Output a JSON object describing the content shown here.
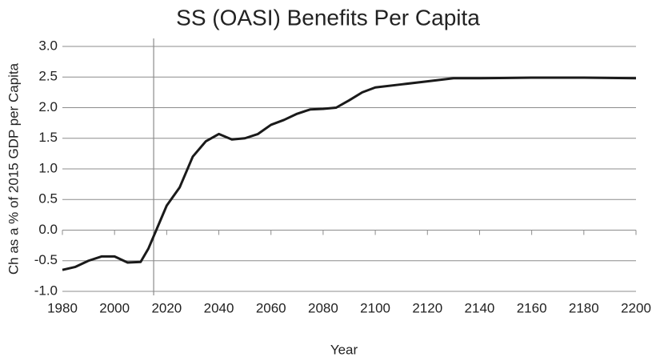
{
  "chart_data": {
    "type": "line",
    "title": "SS (OASI) Benefits Per Capita",
    "xlabel": "Year",
    "ylabel": "Ch as a % of 2015 GDP per Capita",
    "x": [
      1980,
      1985,
      1990,
      1995,
      2000,
      2005,
      2010,
      2013,
      2016,
      2020,
      2025,
      2030,
      2035,
      2040,
      2045,
      2050,
      2055,
      2060,
      2065,
      2070,
      2075,
      2080,
      2085,
      2090,
      2095,
      2100,
      2110,
      2120,
      2130,
      2140,
      2160,
      2180,
      2200
    ],
    "series": [
      {
        "name": "SS (OASI) Benefits Per Capita",
        "color": "#1a1a1a",
        "values": [
          -0.65,
          -0.6,
          -0.5,
          -0.43,
          -0.43,
          -0.53,
          -0.52,
          -0.3,
          0.0,
          0.4,
          0.7,
          1.2,
          1.45,
          1.57,
          1.48,
          1.5,
          1.57,
          1.72,
          1.8,
          1.9,
          1.97,
          1.98,
          2.0,
          2.12,
          2.25,
          2.33,
          2.38,
          2.43,
          2.48,
          2.48,
          2.49,
          2.49,
          2.48
        ]
      }
    ],
    "xlim": [
      1980,
      2200
    ],
    "xticks": [
      1980,
      2000,
      2020,
      2040,
      2060,
      2080,
      2100,
      2120,
      2140,
      2160,
      2180,
      2200
    ],
    "ylim": [
      -1,
      3
    ],
    "yticks": [
      {
        "value": -1,
        "label": "-1.0"
      },
      {
        "value": -0.5,
        "label": "-0.5"
      },
      {
        "value": 0,
        "label": "0.0"
      },
      {
        "value": 0.5,
        "label": "0.5"
      },
      {
        "value": 1,
        "label": "1.0"
      },
      {
        "value": 1.5,
        "label": "1.5"
      },
      {
        "value": 2,
        "label": "2.0"
      },
      {
        "value": 2.5,
        "label": "2.5"
      },
      {
        "value": 3,
        "label": "3.0"
      }
    ],
    "vline": 2015,
    "grid": true
  }
}
